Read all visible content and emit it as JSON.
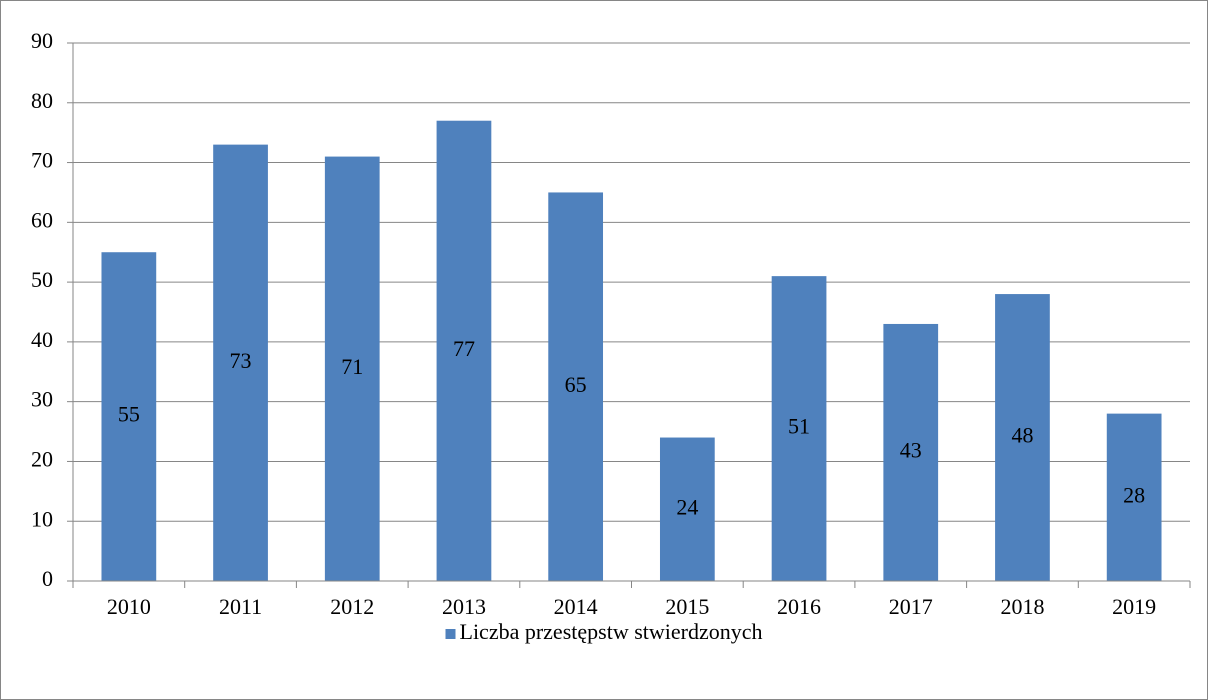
{
  "chart_data": {
    "type": "bar",
    "categories": [
      "2010",
      "2011",
      "2012",
      "2013",
      "2014",
      "2015",
      "2016",
      "2017",
      "2018",
      "2019"
    ],
    "series": [
      {
        "name": "Liczba przestępstw stwierdzonych",
        "color": "#4f81bd",
        "values": [
          55,
          73,
          71,
          77,
          65,
          24,
          51,
          43,
          48,
          28
        ]
      }
    ],
    "ylim": [
      0,
      90
    ],
    "yticks": [
      0,
      10,
      20,
      30,
      40,
      50,
      60,
      70,
      80,
      90
    ],
    "grid": true,
    "legend": "bottom",
    "data_labels": true
  }
}
